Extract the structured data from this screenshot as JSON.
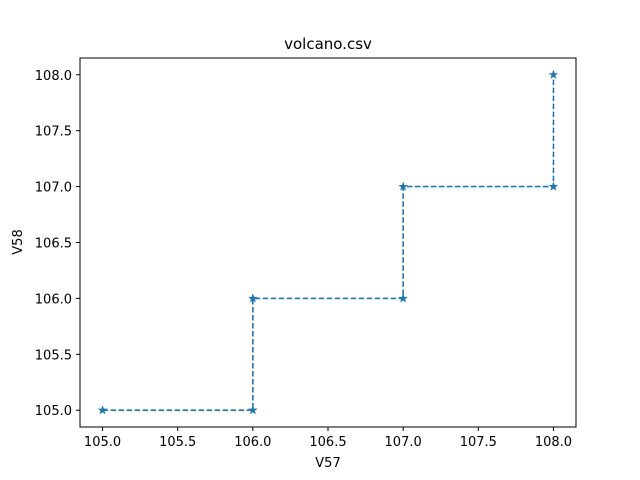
{
  "chart_data": {
    "type": "line",
    "title": "volcano.csv",
    "xlabel": "V57",
    "ylabel": "V58",
    "xlim": [
      104.85,
      108.15
    ],
    "ylim": [
      104.85,
      108.15
    ],
    "xticks": [
      "105.0",
      "105.5",
      "106.0",
      "106.5",
      "107.0",
      "107.5",
      "108.0"
    ],
    "yticks": [
      "105.0",
      "105.5",
      "106.0",
      "106.5",
      "107.0",
      "107.5",
      "108.0"
    ],
    "grid": false,
    "legend": "none",
    "series": [
      {
        "points": [
          [
            105.0,
            105.0
          ],
          [
            106.0,
            105.0
          ],
          [
            106.0,
            106.0
          ],
          [
            107.0,
            106.0
          ],
          [
            107.0,
            107.0
          ],
          [
            108.0,
            107.0
          ],
          [
            108.0,
            108.0
          ]
        ],
        "line_style": "dashed",
        "marker": "star",
        "color": "#1f77b4"
      }
    ]
  }
}
